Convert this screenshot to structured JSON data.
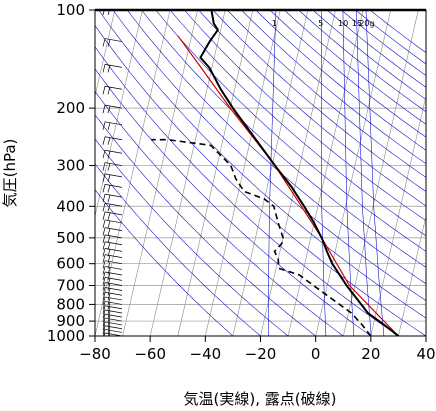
{
  "chart_data": {
    "type": "skew-t",
    "xlabel": "気温(実線), 露点(破線)",
    "ylabel": "気圧(hPa)",
    "xlim": [
      -80,
      40
    ],
    "ylim": [
      1000,
      100
    ],
    "y_scale": "log",
    "x_ticks": [
      -80,
      -60,
      -40,
      -20,
      0,
      20,
      40
    ],
    "x_tick_labels": [
      "−80",
      "−60",
      "−40",
      "−20",
      "0",
      "20",
      "40"
    ],
    "y_ticks": [
      100,
      200,
      300,
      400,
      500,
      600,
      700,
      800,
      900,
      1000
    ],
    "y_tick_labels": [
      "100",
      "200",
      "300",
      "400",
      "500",
      "600",
      "700",
      "800",
      "900",
      "1000"
    ],
    "mixing_ratio_labels": [
      "1",
      "5",
      "10",
      "15",
      "20g"
    ],
    "mixing_ratio_values": [
      1,
      5,
      10,
      15,
      20
    ],
    "colors": {
      "temperature": "#000000",
      "dewpoint": "#000000",
      "reference": "#cc0000",
      "isotherms": "#8c8c8c",
      "dry_adiabats": "#0000cc",
      "mixing_ratio": "#0000cc"
    },
    "series": [
      {
        "name": "temperature",
        "points": [
          {
            "p": 1000,
            "t": 30
          },
          {
            "p": 925,
            "t": 24
          },
          {
            "p": 850,
            "t": 17
          },
          {
            "p": 700,
            "t": 7
          },
          {
            "p": 600,
            "t": 0
          },
          {
            "p": 550,
            "t": -3
          },
          {
            "p": 500,
            "t": -6
          },
          {
            "p": 450,
            "t": -10
          },
          {
            "p": 400,
            "t": -15
          },
          {
            "p": 350,
            "t": -21
          },
          {
            "p": 300,
            "t": -29
          },
          {
            "p": 250,
            "t": -38
          },
          {
            "p": 200,
            "t": -49
          },
          {
            "p": 175,
            "t": -55
          },
          {
            "p": 150,
            "t": -61
          },
          {
            "p": 140,
            "t": -65
          },
          {
            "p": 125,
            "t": -63
          },
          {
            "p": 115,
            "t": -61
          },
          {
            "p": 110,
            "t": -63
          },
          {
            "p": 100,
            "t": -65
          }
        ]
      },
      {
        "name": "dewpoint",
        "points": [
          {
            "p": 1000,
            "t": 20
          },
          {
            "p": 925,
            "t": 16
          },
          {
            "p": 850,
            "t": 11
          },
          {
            "p": 800,
            "t": 6
          },
          {
            "p": 700,
            "t": -5
          },
          {
            "p": 650,
            "t": -11
          },
          {
            "p": 620,
            "t": -19
          },
          {
            "p": 580,
            "t": -20
          },
          {
            "p": 550,
            "t": -22
          },
          {
            "p": 520,
            "t": -20
          },
          {
            "p": 500,
            "t": -20
          },
          {
            "p": 450,
            "t": -23
          },
          {
            "p": 400,
            "t": -26
          },
          {
            "p": 380,
            "t": -30
          },
          {
            "p": 360,
            "t": -38
          },
          {
            "p": 330,
            "t": -42
          },
          {
            "p": 300,
            "t": -45
          },
          {
            "p": 260,
            "t": -54
          },
          {
            "p": 250,
            "t": -70
          },
          {
            "p": 250,
            "t": -76
          }
        ]
      },
      {
        "name": "reference",
        "points": [
          {
            "p": 1000,
            "t": 30
          },
          {
            "p": 700,
            "t": 8
          },
          {
            "p": 500,
            "t": -6
          },
          {
            "p": 400,
            "t": -16
          },
          {
            "p": 300,
            "t": -29
          },
          {
            "p": 200,
            "t": -50
          },
          {
            "p": 150,
            "t": -64
          },
          {
            "p": 120,
            "t": -75
          }
        ]
      }
    ],
    "wind_profile": "wind barbs at left edge, every level from 1000 to 100 hPa"
  }
}
